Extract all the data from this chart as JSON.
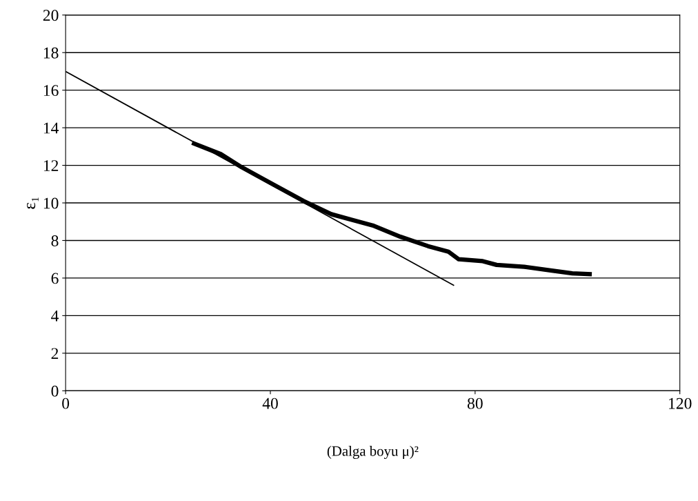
{
  "chart_data": {
    "type": "line",
    "xlabel": "(Dalga boyu μ)²",
    "ylabel": "ε₁",
    "xlim": [
      0,
      120
    ],
    "xticks": [
      0,
      40,
      80,
      120
    ],
    "ylim": [
      0,
      20
    ],
    "yticks": [
      0,
      2,
      4,
      6,
      8,
      10,
      12,
      14,
      16,
      18,
      20
    ],
    "grid": "y",
    "legend": false,
    "series": [
      {
        "color": "#000000",
        "x": [
          24.7,
          30.3,
          34.4,
          41.1,
          46.5,
          51.9,
          55.9,
          60,
          65.4,
          70.8,
          74.8,
          76.8,
          81.5,
          84.2,
          89.6,
          95,
          99,
          102.8
        ],
        "values": [
          13.2,
          12.6,
          11.9,
          10.9,
          10.1,
          9.4,
          9.1,
          8.8,
          8.2,
          7.7,
          7.4,
          7.0,
          6.9,
          6.7,
          6.6,
          6.4,
          6.25,
          6.2
        ]
      },
      {
        "color": "#000000",
        "x": [
          0,
          75.9
        ],
        "values": [
          17,
          5.6
        ]
      }
    ]
  }
}
